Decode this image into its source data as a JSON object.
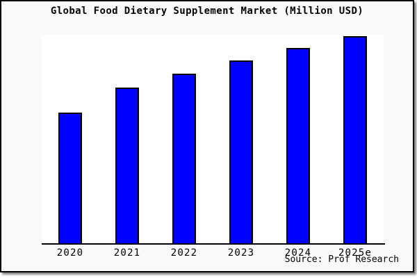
{
  "page": {
    "background_color": "#f9f9f9",
    "plot_background_color": "#ffffff",
    "border_color": "#000000"
  },
  "chart_data": {
    "type": "bar",
    "title": "Global Food Dietary Supplement Market (Million USD)",
    "categories": [
      "2020",
      "2021",
      "2022",
      "2023",
      "2024",
      "2025e"
    ],
    "values": [
      188,
      224,
      244,
      263,
      281,
      298
    ],
    "values_note": "relative bar heights in px; chart shows no numeric y-axis, gridlines or data labels",
    "ylim": [
      0,
      300
    ],
    "xlabel": "",
    "ylabel": "",
    "grid": false,
    "legend": false,
    "bar_color": "#0000ff",
    "bar_border_color": "#000000",
    "source": "Source: Prof Research"
  }
}
